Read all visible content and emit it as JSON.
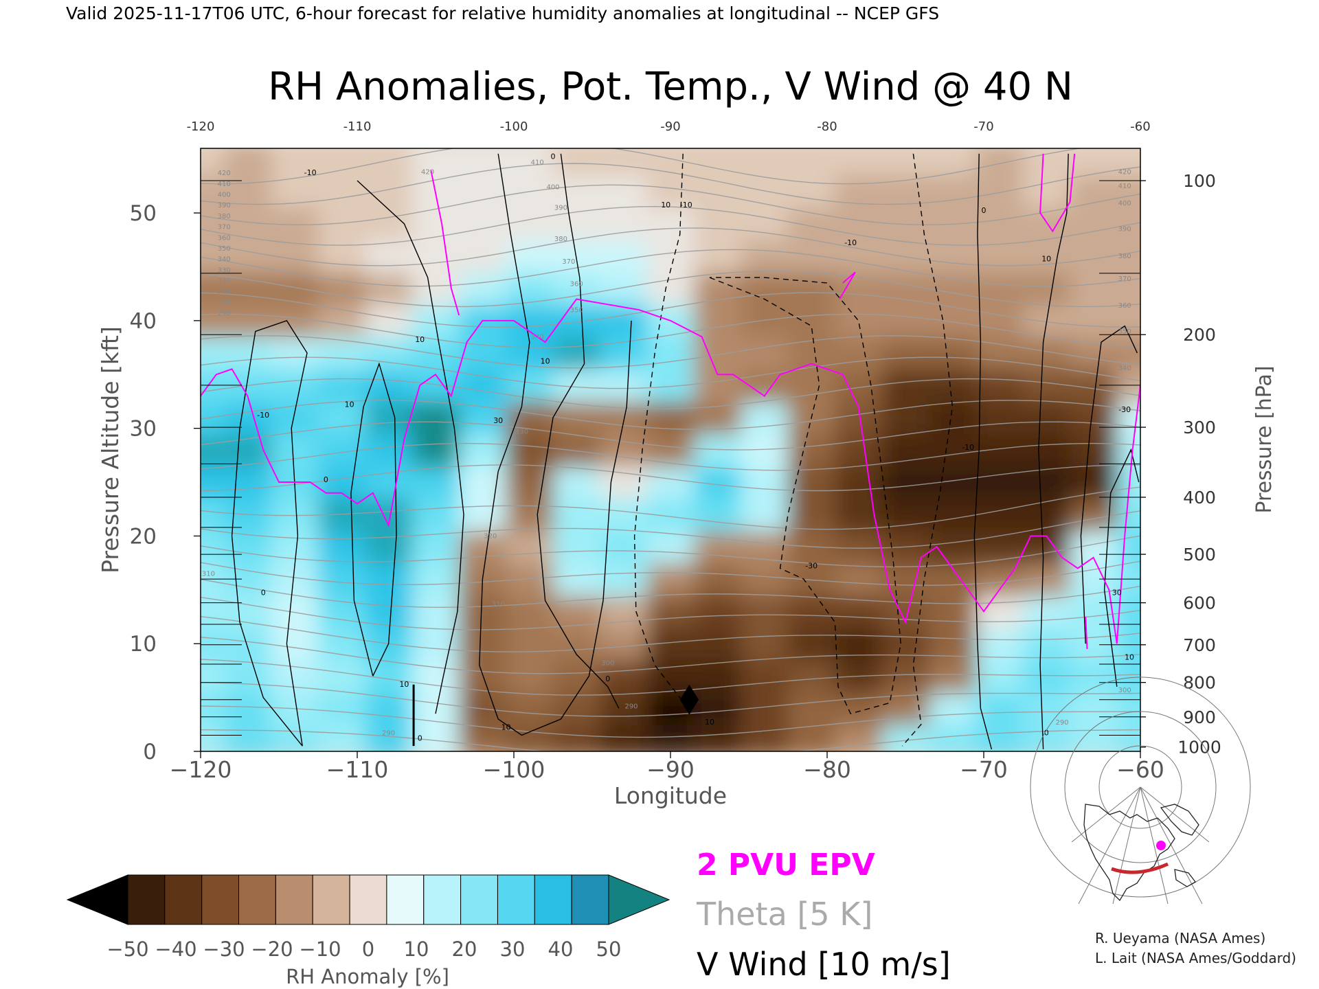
{
  "header": {
    "valid_line": "Valid 2025-11-17T06 UTC, 6-hour forecast for relative humidity anomalies at longitudinal -- NCEP GFS",
    "title": "RH Anomalies, Pot. Temp., V Wind @ 40 N"
  },
  "chart_data": {
    "type": "heatmap",
    "title": "RH Anomalies, Pot. Temp., V Wind @ 40 N",
    "xlabel": "Longitude",
    "ylabel": "Pressure Altitude [kft]",
    "ylabel_right": "Pressure [hPa]",
    "xlim": [
      -120,
      -60
    ],
    "ylim": [
      0,
      56
    ],
    "x_ticks": [
      -120,
      -110,
      -100,
      -90,
      -80,
      -70,
      -60
    ],
    "x_tick_labels": [
      "−120",
      "−110",
      "−100",
      "−90",
      "−80",
      "−70",
      "−60"
    ],
    "top_tick_labels": [
      "-120",
      "-110",
      "-100",
      "-90",
      "-80",
      "-70",
      "-60"
    ],
    "y_ticks": [
      0,
      10,
      20,
      30,
      40,
      50
    ],
    "y_tick_labels": [
      "0",
      "10",
      "20",
      "30",
      "40",
      "50"
    ],
    "pressure_ticks": [
      {
        "hpa": "100",
        "kft": 53.0
      },
      {
        "hpa": "200",
        "kft": 38.7
      },
      {
        "hpa": "300",
        "kft": 30.1
      },
      {
        "hpa": "400",
        "kft": 23.6
      },
      {
        "hpa": "500",
        "kft": 18.3
      },
      {
        "hpa": "600",
        "kft": 13.8
      },
      {
        "hpa": "700",
        "kft": 9.9
      },
      {
        "hpa": "800",
        "kft": 6.4
      },
      {
        "hpa": "900",
        "kft": 3.2
      },
      {
        "hpa": "1000",
        "kft": 0.4
      }
    ],
    "rh_x": [
      -120,
      -117,
      -114,
      -111,
      -108,
      -105,
      -102,
      -99,
      -96,
      -93,
      -90,
      -87,
      -84,
      -81,
      -78,
      -75,
      -72,
      -69,
      -66,
      -63,
      -60
    ],
    "rh_y": [
      1,
      4,
      7,
      10,
      13,
      16,
      19,
      22,
      25,
      28,
      31,
      34,
      37,
      40,
      43,
      46,
      49,
      52,
      55
    ],
    "rh_anomaly": [
      [
        20,
        30,
        25,
        20,
        35,
        10,
        -20,
        -25,
        -30,
        -40,
        -45,
        -40,
        -30,
        -20,
        -10,
        20,
        25,
        30,
        25,
        20,
        25
      ],
      [
        25,
        30,
        20,
        25,
        35,
        10,
        -25,
        -20,
        -25,
        -35,
        -50,
        -45,
        -30,
        -20,
        -20,
        -15,
        15,
        30,
        25,
        20,
        25
      ],
      [
        20,
        25,
        15,
        20,
        30,
        10,
        -20,
        -15,
        -20,
        -30,
        -40,
        -40,
        -30,
        -25,
        -35,
        -25,
        -15,
        20,
        30,
        25,
        30
      ],
      [
        25,
        25,
        10,
        25,
        35,
        15,
        -20,
        -15,
        -15,
        -10,
        -35,
        -35,
        -25,
        -35,
        -40,
        -30,
        -20,
        15,
        25,
        20,
        30
      ],
      [
        20,
        20,
        10,
        30,
        40,
        15,
        -20,
        -15,
        -10,
        -5,
        -25,
        -30,
        -25,
        -30,
        -30,
        -25,
        -20,
        5,
        15,
        20,
        30
      ],
      [
        20,
        25,
        15,
        35,
        40,
        20,
        -15,
        -10,
        15,
        20,
        -10,
        -20,
        -15,
        -20,
        -15,
        -20,
        -20,
        -15,
        -10,
        15,
        25
      ],
      [
        25,
        30,
        20,
        40,
        45,
        25,
        -10,
        -5,
        20,
        25,
        15,
        -10,
        -10,
        -20,
        -25,
        -30,
        -35,
        -35,
        -35,
        10,
        30
      ],
      [
        30,
        35,
        25,
        45,
        45,
        30,
        10,
        -15,
        20,
        20,
        25,
        30,
        15,
        -25,
        -35,
        -40,
        -40,
        -40,
        -40,
        -20,
        25
      ],
      [
        40,
        40,
        30,
        40,
        35,
        35,
        10,
        -20,
        15,
        5,
        15,
        35,
        15,
        -25,
        -35,
        -45,
        -45,
        -45,
        -45,
        -40,
        20
      ],
      [
        45,
        45,
        30,
        35,
        40,
        50,
        20,
        -25,
        -20,
        -10,
        -15,
        20,
        10,
        -20,
        -30,
        -40,
        -40,
        -40,
        -40,
        -35,
        15
      ],
      [
        35,
        40,
        35,
        30,
        45,
        50,
        35,
        -20,
        -15,
        -15,
        -20,
        -15,
        15,
        -15,
        -25,
        -35,
        -40,
        -35,
        -35,
        -30,
        10
      ],
      [
        30,
        30,
        30,
        35,
        40,
        35,
        40,
        30,
        15,
        15,
        25,
        -10,
        -15,
        -15,
        -20,
        -35,
        -35,
        -30,
        -25,
        -25,
        -5
      ],
      [
        20,
        20,
        15,
        20,
        25,
        30,
        35,
        40,
        45,
        35,
        25,
        -10,
        -10,
        -15,
        -15,
        -20,
        -20,
        -15,
        -15,
        -10,
        -10
      ],
      [
        -10,
        -10,
        -10,
        -5,
        5,
        20,
        35,
        40,
        40,
        40,
        20,
        -10,
        -15,
        -15,
        -10,
        -10,
        -10,
        -10,
        -5,
        -5,
        -5
      ],
      [
        -15,
        -15,
        -15,
        -10,
        -5,
        5,
        15,
        25,
        20,
        15,
        5,
        -10,
        -15,
        -15,
        -10,
        -10,
        -10,
        -10,
        -10,
        -5,
        -5
      ],
      [
        -5,
        -5,
        -5,
        0,
        5,
        5,
        5,
        10,
        10,
        10,
        5,
        0,
        -5,
        -5,
        -5,
        -5,
        -5,
        -5,
        -5,
        -5,
        -5
      ],
      [
        -5,
        -5,
        -5,
        0,
        0,
        5,
        5,
        5,
        5,
        5,
        5,
        0,
        0,
        -5,
        -5,
        -5,
        -5,
        -5,
        -5,
        -5,
        -5
      ],
      [
        -5,
        -5,
        0,
        0,
        0,
        5,
        5,
        5,
        5,
        5,
        0,
        0,
        0,
        0,
        -5,
        -5,
        -5,
        -5,
        0,
        -5,
        -5
      ],
      [
        0,
        -5,
        0,
        0,
        0,
        5,
        5,
        5,
        0,
        0,
        0,
        0,
        0,
        0,
        0,
        0,
        0,
        -5,
        0,
        0,
        0
      ]
    ],
    "epv_2pvu": [
      [
        -120,
        33
      ],
      [
        -119,
        35
      ],
      [
        -118,
        35.5
      ],
      [
        -117,
        33
      ],
      [
        -116,
        28
      ],
      [
        -115,
        25
      ],
      [
        -114,
        25
      ],
      [
        -113,
        25
      ],
      [
        -112,
        24
      ],
      [
        -111,
        24
      ],
      [
        -110,
        23
      ],
      [
        -109,
        24
      ],
      [
        -108,
        21
      ],
      [
        -107,
        29
      ],
      [
        -106,
        34
      ],
      [
        -105,
        35
      ],
      [
        -104,
        33
      ],
      [
        -103,
        38
      ],
      [
        -102,
        40
      ],
      [
        -100,
        40
      ],
      [
        -99,
        39
      ],
      [
        -98,
        38
      ],
      [
        -96,
        42
      ],
      [
        -94,
        41.5
      ],
      [
        -92,
        41
      ],
      [
        -90,
        40
      ],
      [
        -88,
        38.5
      ],
      [
        -87,
        35
      ],
      [
        -86,
        35
      ],
      [
        -85,
        34
      ],
      [
        -84,
        33
      ],
      [
        -83,
        35
      ],
      [
        -81,
        36
      ],
      [
        -79,
        35
      ],
      [
        -78,
        32
      ],
      [
        -77,
        22
      ],
      [
        -76,
        15
      ],
      [
        -75,
        12
      ],
      [
        -74,
        18
      ],
      [
        -73,
        19
      ],
      [
        -72,
        17
      ],
      [
        -71,
        15
      ],
      [
        -70,
        13
      ],
      [
        -69,
        15
      ],
      [
        -68,
        17
      ],
      [
        -67,
        20
      ],
      [
        -66,
        20
      ],
      [
        -65,
        18
      ],
      [
        -64,
        17
      ],
      [
        -63,
        18
      ],
      [
        -62,
        15
      ],
      [
        -61.5,
        10
      ],
      [
        -61,
        20
      ],
      [
        -60.5,
        28
      ],
      [
        -60,
        34
      ]
    ],
    "legend": {
      "epv": "2 PVU EPV",
      "theta": "Theta [5 K]",
      "vwind": "V Wind [10 m/s]"
    },
    "colorbar": {
      "label": "RH Anomaly [%]",
      "ticks": [
        "−50",
        "−40",
        "−30",
        "−20",
        "−10",
        "0",
        "10",
        "20",
        "30",
        "40",
        "50"
      ],
      "colors": [
        "#000000",
        "#3a1e0c",
        "#5e3416",
        "#7e4e2a",
        "#9c6c48",
        "#b98e6e",
        "#d4b49a",
        "#ebdbd0",
        "#e6f9fb",
        "#b8f2fa",
        "#86e6f6",
        "#56d6f0",
        "#29bee3",
        "#1f8fb5",
        "#138281"
      ]
    },
    "theta_labels": [
      {
        "v": "420",
        "x": -118.5,
        "y": 53.5
      },
      {
        "v": "410",
        "x": -118.5,
        "y": 52.5
      },
      {
        "v": "400",
        "x": -118.5,
        "y": 51.5
      },
      {
        "v": "390",
        "x": -118.5,
        "y": 50.5
      },
      {
        "v": "380",
        "x": -118.5,
        "y": 49.5
      },
      {
        "v": "370",
        "x": -118.5,
        "y": 48.5
      },
      {
        "v": "360",
        "x": -118.5,
        "y": 47.5
      },
      {
        "v": "350",
        "x": -118.5,
        "y": 46.5
      },
      {
        "v": "340",
        "x": -118.5,
        "y": 45.5
      },
      {
        "v": "330",
        "x": -118.5,
        "y": 44.5
      },
      {
        "v": "320",
        "x": -118.5,
        "y": 43.5
      },
      {
        "v": "310",
        "x": -118.5,
        "y": 42.5
      },
      {
        "v": "300",
        "x": -118.5,
        "y": 41.5
      },
      {
        "v": "290",
        "x": -118.5,
        "y": 40.5
      },
      {
        "v": "420",
        "x": -105.5,
        "y": 53.6
      },
      {
        "v": "410",
        "x": -98.5,
        "y": 54.5
      },
      {
        "v": "400",
        "x": -97.5,
        "y": 52.2
      },
      {
        "v": "390",
        "x": -97.0,
        "y": 50.3
      },
      {
        "v": "380",
        "x": -97.0,
        "y": 47.4
      },
      {
        "v": "370",
        "x": -96.5,
        "y": 45.3
      },
      {
        "v": "360",
        "x": -96.0,
        "y": 43.2
      },
      {
        "v": "350",
        "x": -96.0,
        "y": 40.8
      },
      {
        "v": "340",
        "x": -98.5,
        "y": 38.3
      },
      {
        "v": "330",
        "x": -99.5,
        "y": 29.5
      },
      {
        "v": "320",
        "x": -101.5,
        "y": 19.8
      },
      {
        "v": "310",
        "x": -101.0,
        "y": 13.5
      },
      {
        "v": "300",
        "x": -94.0,
        "y": 8.0
      },
      {
        "v": "290",
        "x": -92.5,
        "y": 4.0
      },
      {
        "v": "290",
        "x": -108.0,
        "y": 1.5
      },
      {
        "v": "310",
        "x": -119.5,
        "y": 16.3
      },
      {
        "v": "290",
        "x": -65.0,
        "y": 2.5
      },
      {
        "v": "300",
        "x": -61.0,
        "y": 5.5
      },
      {
        "v": "340",
        "x": -61.0,
        "y": 35.4
      },
      {
        "v": "350",
        "x": -61.0,
        "y": 38.8
      },
      {
        "v": "360",
        "x": -61.0,
        "y": 41.2
      },
      {
        "v": "370",
        "x": -61.0,
        "y": 43.7
      },
      {
        "v": "380",
        "x": -61.0,
        "y": 45.8
      },
      {
        "v": "390",
        "x": -61.0,
        "y": 48.3
      },
      {
        "v": "400",
        "x": -61.0,
        "y": 50.7
      },
      {
        "v": "410",
        "x": -61.0,
        "y": 52.3
      },
      {
        "v": "420",
        "x": -61.0,
        "y": 53.6
      }
    ],
    "vwind_labels": [
      {
        "v": "-10",
        "x": -113.0,
        "y": 53.5
      },
      {
        "v": "10",
        "x": -90.3,
        "y": 50.5
      },
      {
        "v": "-10",
        "x": -89.0,
        "y": 50.5
      },
      {
        "v": "-10",
        "x": -78.5,
        "y": 47.0
      },
      {
        "v": "0",
        "x": -70.0,
        "y": 50.0
      },
      {
        "v": "10",
        "x": -66.0,
        "y": 45.5
      },
      {
        "v": "0",
        "x": -97.5,
        "y": 55.0
      },
      {
        "v": "10",
        "x": -106.0,
        "y": 38.0
      },
      {
        "v": "-10",
        "x": -116.0,
        "y": 31.0
      },
      {
        "v": "0",
        "x": -112.0,
        "y": 25.0
      },
      {
        "v": "10",
        "x": -110.5,
        "y": 32.0
      },
      {
        "v": "30",
        "x": -101.0,
        "y": 30.5
      },
      {
        "v": "10",
        "x": -98.0,
        "y": 36.0
      },
      {
        "v": "0",
        "x": -116.0,
        "y": 14.5
      },
      {
        "v": "-30",
        "x": -81.0,
        "y": 17.0
      },
      {
        "v": "-10",
        "x": -71.0,
        "y": 28.0
      },
      {
        "v": "0",
        "x": -94.0,
        "y": 6.5
      },
      {
        "v": "10",
        "x": -107.0,
        "y": 6.0
      },
      {
        "v": "10",
        "x": -100.5,
        "y": 2.0
      },
      {
        "v": "10",
        "x": -87.5,
        "y": 2.5
      },
      {
        "v": "0",
        "x": -66.0,
        "y": 1.5
      },
      {
        "v": "30",
        "x": -61.5,
        "y": 14.5
      },
      {
        "v": "10",
        "x": -60.7,
        "y": 8.5
      },
      {
        "v": "-30",
        "x": -61.0,
        "y": 31.5
      },
      {
        "v": "0",
        "x": -106.0,
        "y": 1.0
      }
    ]
  },
  "credits": {
    "line1": "R. Ueyama (NASA Ames)",
    "line2": "L. Lait (NASA Ames/Goddard)"
  }
}
